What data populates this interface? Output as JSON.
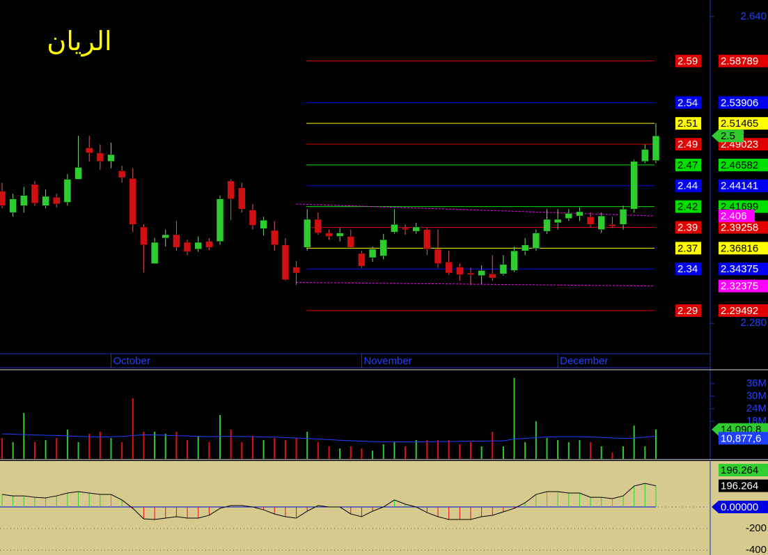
{
  "chart_data": [
    {
      "type": "candlestick",
      "title": "الريان",
      "title_color": "#ffff00",
      "categories": [
        null,
        null,
        null,
        null,
        null,
        null,
        null,
        null,
        null,
        null,
        "October",
        null,
        null,
        null,
        null,
        null,
        null,
        null,
        null,
        null,
        null,
        null,
        null,
        null,
        null,
        null,
        null,
        null,
        null,
        null,
        null,
        null,
        null,
        "November",
        null,
        null,
        null,
        null,
        null,
        null,
        null,
        null,
        null,
        null,
        null,
        null,
        null,
        null,
        null,
        null,
        null,
        "December",
        null,
        null,
        null,
        null,
        null,
        null,
        null,
        null,
        null
      ],
      "open": [
        2.435,
        2.41,
        2.418,
        2.443,
        2.418,
        2.428,
        2.422,
        2.449,
        2.486,
        2.48,
        2.47,
        2.459,
        2.45,
        2.393,
        2.35,
        2.38,
        2.384,
        2.375,
        2.367,
        2.376,
        2.376,
        2.447,
        2.439,
        2.413,
        2.391,
        2.389,
        2.372,
        2.346,
        2.369,
        2.402,
        2.386,
        2.382,
        2.382,
        2.362,
        2.357,
        2.359,
        2.387,
        2.392,
        2.388,
        2.39,
        2.367,
        2.352,
        2.346,
        2.339,
        2.336,
        2.338,
        2.338,
        2.342,
        2.365,
        2.368,
        2.388,
        2.398,
        2.403,
        2.406,
        2.405,
        2.39,
        2.396,
        2.396,
        2.414,
        2.47,
        2.471
      ],
      "high": [
        2.445,
        2.432,
        2.44,
        2.447,
        2.437,
        2.432,
        2.455,
        2.5,
        2.5,
        2.49,
        2.492,
        2.465,
        2.462,
        2.396,
        2.38,
        2.39,
        2.4,
        2.378,
        2.382,
        2.38,
        2.43,
        2.449,
        2.445,
        2.42,
        2.405,
        2.4,
        2.38,
        2.353,
        2.414,
        2.41,
        2.39,
        2.392,
        2.39,
        2.365,
        2.37,
        2.385,
        2.414,
        2.396,
        2.398,
        2.392,
        2.39,
        2.365,
        2.35,
        2.345,
        2.348,
        2.36,
        2.36,
        2.37,
        2.38,
        2.39,
        2.414,
        2.414,
        2.414,
        2.416,
        2.41,
        2.41,
        2.405,
        2.418,
        2.472,
        2.49,
        2.515
      ],
      "low": [
        2.415,
        2.405,
        2.41,
        2.418,
        2.415,
        2.416,
        2.418,
        2.449,
        2.47,
        2.46,
        2.462,
        2.445,
        2.387,
        2.34,
        2.35,
        2.37,
        2.365,
        2.36,
        2.364,
        2.366,
        2.372,
        2.401,
        2.41,
        2.39,
        2.383,
        2.365,
        2.33,
        2.325,
        2.365,
        2.384,
        2.378,
        2.376,
        2.367,
        2.345,
        2.352,
        2.355,
        2.385,
        2.384,
        2.385,
        2.36,
        2.345,
        2.337,
        2.33,
        2.325,
        2.326,
        2.33,
        2.336,
        2.34,
        2.36,
        2.365,
        2.385,
        2.39,
        2.4,
        2.4,
        2.393,
        2.386,
        2.392,
        2.39,
        2.41,
        2.468,
        2.468
      ],
      "close": [
        2.418,
        2.426,
        2.43,
        2.421,
        2.429,
        2.42,
        2.449,
        2.463,
        2.48,
        2.47,
        2.478,
        2.451,
        2.396,
        2.372,
        2.375,
        2.384,
        2.369,
        2.364,
        2.375,
        2.369,
        2.426,
        2.426,
        2.414,
        2.395,
        2.401,
        2.372,
        2.331,
        2.339,
        2.402,
        2.386,
        2.382,
        2.386,
        2.369,
        2.347,
        2.367,
        2.378,
        2.396,
        2.39,
        2.393,
        2.367,
        2.35,
        2.339,
        2.337,
        2.337,
        2.342,
        2.333,
        2.349,
        2.365,
        2.372,
        2.386,
        2.402,
        2.402,
        2.409,
        2.411,
        2.396,
        2.406,
        2.394,
        2.414,
        2.47,
        2.484,
        2.5
      ],
      "up_color": "#2ecc2e",
      "down_color": "#d01010",
      "ylim": [
        2.2442,
        2.6595
      ],
      "yticks": [
        {
          "value": 2.64,
          "label": "2.640"
        },
        {
          "value": 2.28,
          "label": "2.280"
        }
      ],
      "levels": [
        {
          "value": 2.58789,
          "label": "2.59",
          "color": "#e00000"
        },
        {
          "value": 2.53906,
          "label": "2.54",
          "color": "#0000f0"
        },
        {
          "value": 2.51465,
          "label": "2.51",
          "color": "#ffff00"
        },
        {
          "value": 2.49023,
          "label": "2.49",
          "color": "#e00000"
        },
        {
          "value": 2.46582,
          "label": "2.47",
          "color": "#00e000"
        },
        {
          "value": 2.44141,
          "label": "2.44",
          "color": "#0000f0"
        },
        {
          "value": 2.41699,
          "label": "2.42",
          "color": "#00e000"
        },
        {
          "value": 2.39258,
          "label": "2.39",
          "color": "#e00000"
        },
        {
          "value": 2.36816,
          "label": "2.37",
          "color": "#ffff00"
        },
        {
          "value": 2.34375,
          "label": "2.34",
          "color": "#0000f0"
        },
        {
          "value": 2.29492,
          "label": "2.29",
          "color": "#e00000"
        }
      ],
      "channel": {
        "color": "#ff00ff",
        "upper": [
          2.42,
          2.406
        ],
        "lower": [
          2.328,
          2.32375
        ]
      }
    },
    {
      "type": "bar",
      "values": [
        10000000,
        8000000,
        22000000,
        8000000,
        9000000,
        10000000,
        14000000,
        8000000,
        12000000,
        13000000,
        10000000,
        8000000,
        29000000,
        13000000,
        13000000,
        12000000,
        13000000,
        9000000,
        11000000,
        8000000,
        21000000,
        14000000,
        8000000,
        11000000,
        9000000,
        10000000,
        9000000,
        10000000,
        13000000,
        8000000,
        6000000,
        5000000,
        6000000,
        5000000,
        4000000,
        7000000,
        8000000,
        6000000,
        9000000,
        9000000,
        9000000,
        9000000,
        7000000,
        8000000,
        6000000,
        13000000,
        6000000,
        38700000,
        8000000,
        18000000,
        10000000,
        9000000,
        8000000,
        9000000,
        8000000,
        6000000,
        3000000,
        6000000,
        16000000,
        6000000,
        14090800
      ],
      "value_labels": [
        null,
        null,
        null,
        null,
        null,
        null,
        null,
        null,
        null,
        null,
        null,
        null,
        null,
        null,
        null,
        null,
        null,
        null,
        null,
        null,
        null,
        null,
        null,
        null,
        null,
        null,
        null,
        null,
        null,
        null,
        null,
        null,
        null,
        null,
        null,
        null,
        null,
        null,
        null,
        null,
        null,
        null,
        null,
        null,
        null,
        null,
        null,
        null,
        null,
        null,
        null,
        null,
        null,
        null,
        null,
        null,
        null,
        null,
        null,
        null,
        "14,090,8"
      ],
      "up_color": "#2ecc2e",
      "down_color": "#e01010",
      "average": {
        "color": "#2040ff",
        "values": [
          12000000,
          11800000,
          11600000,
          11500000,
          11300000,
          11200000,
          11000000,
          10800000,
          10600000,
          10500000,
          10600000,
          10800000,
          11200000,
          11500000,
          11500000,
          11300000,
          11100000,
          11000000,
          10800000,
          10600000,
          10800000,
          10800000,
          10700000,
          10600000,
          10500000,
          10400000,
          10200000,
          10000000,
          9800000,
          9500000,
          9200000,
          8900000,
          8700000,
          8500000,
          8300000,
          8200000,
          8200000,
          8100000,
          8100000,
          8200000,
          8300000,
          8300000,
          8400000,
          8500000,
          8500000,
          8600000,
          8600000,
          9500000,
          9800000,
          10200000,
          10500000,
          10600000,
          10600000,
          10600000,
          10500000,
          10300000,
          10000000,
          9800000,
          9900000,
          10400000,
          10877600
        ],
        "value_labels": [
          null,
          null,
          null,
          null,
          null,
          null,
          null,
          null,
          null,
          null,
          null,
          null,
          null,
          null,
          null,
          null,
          null,
          null,
          null,
          null,
          null,
          null,
          null,
          null,
          null,
          null,
          null,
          null,
          null,
          null,
          null,
          null,
          null,
          null,
          null,
          null,
          null,
          null,
          null,
          null,
          null,
          null,
          null,
          null,
          null,
          null,
          null,
          null,
          null,
          null,
          null,
          null,
          null,
          null,
          null,
          null,
          null,
          null,
          null,
          null,
          "10,877,6"
        ]
      },
      "ylim": [
        0,
        41300000
      ],
      "yticks": [
        {
          "value": 36000000,
          "label": "36M"
        },
        {
          "value": 30000000,
          "label": "30M"
        },
        {
          "value": 24000000,
          "label": "24M"
        },
        {
          "value": 18000000,
          "label": "18M"
        }
      ]
    },
    {
      "type": "oscillator",
      "values": [
        116,
        103,
        103,
        90,
        84,
        103,
        129,
        142,
        129,
        116,
        116,
        65,
        -13,
        -110,
        -116,
        -103,
        -90,
        -103,
        -103,
        -77,
        -13,
        13,
        13,
        0,
        -26,
        -65,
        -90,
        -103,
        -39,
        13,
        0,
        0,
        -65,
        -90,
        -39,
        0,
        65,
        26,
        0,
        -52,
        -90,
        -116,
        -116,
        -116,
        -90,
        -77,
        -45,
        -13,
        39,
        116,
        142,
        142,
        129,
        129,
        90,
        90,
        77,
        103,
        194,
        219,
        196.264
      ],
      "line_color": "#000000",
      "up_color": "#30d030",
      "down_color": "#e01010",
      "ylim": [
        -445,
        426
      ],
      "yticks": [
        {
          "value": 0,
          "label": "0.00000"
        },
        -200,
        -400
      ],
      "grid": true
    }
  ]
}
